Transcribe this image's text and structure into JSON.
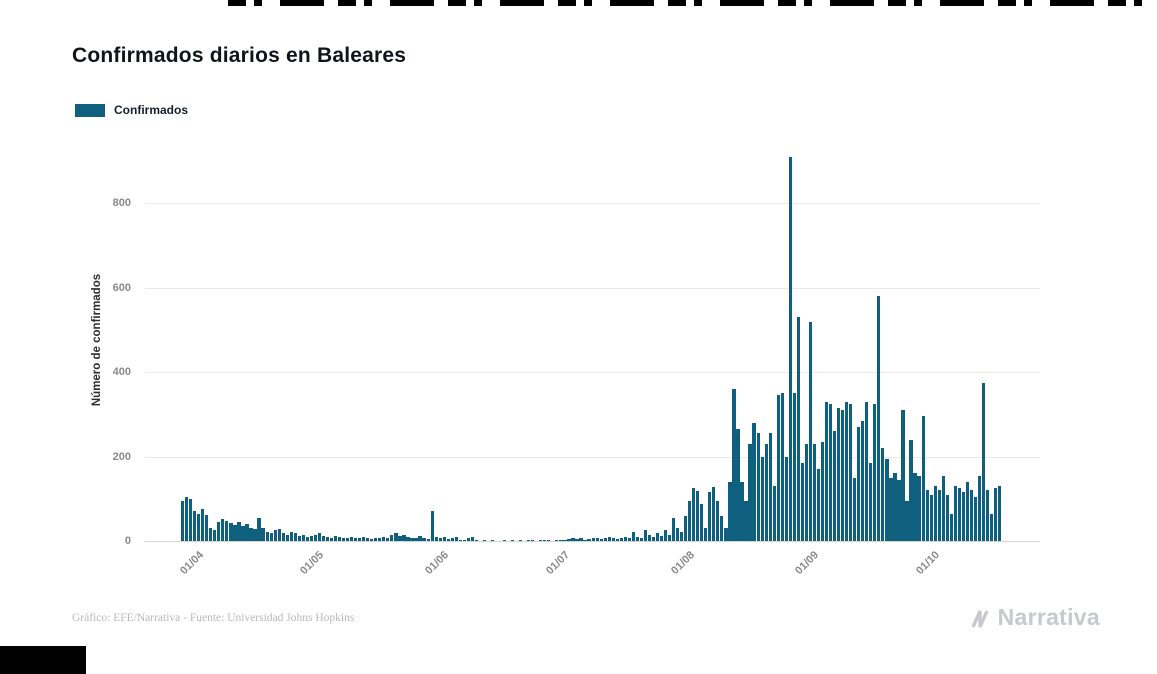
{
  "page": {
    "title": "Confirmados diarios en Baleares",
    "footer": "Gráfico: EFE/Narrativa - Fuente: Universidad Johns Hopkins",
    "brand": "Narrativa"
  },
  "legend": {
    "label": "Confirmados",
    "color": "#0f5f7f"
  },
  "chart_data": {
    "type": "bar",
    "title": "Confirmados diarios en Baleares",
    "xlabel": "",
    "ylabel": "Número de confirmados",
    "ylim": [
      0,
      950
    ],
    "y_ticks": [
      0,
      200,
      400,
      600,
      800
    ],
    "x_tick_labels": [
      "01/04",
      "01/05",
      "01/06",
      "01/07",
      "01/08",
      "01/09",
      "01/10"
    ],
    "x_tick_day_index": [
      4,
      34,
      65,
      95,
      126,
      157,
      187
    ],
    "bar_color": "#0f5f7f",
    "grid": true,
    "legend_position": "top-left",
    "x_range": {
      "start": "2020-03-28",
      "end": "2020-10-17",
      "frequency": "daily"
    },
    "series": [
      {
        "name": "Confirmados",
        "values": [
          95,
          105,
          100,
          70,
          65,
          75,
          62,
          30,
          25,
          45,
          52,
          48,
          42,
          38,
          45,
          35,
          40,
          32,
          28,
          55,
          30,
          22,
          18,
          25,
          28,
          20,
          15,
          22,
          18,
          12,
          15,
          10,
          12,
          15,
          18,
          12,
          10,
          8,
          12,
          10,
          8,
          6,
          10,
          8,
          6,
          10,
          8,
          5,
          6,
          8,
          10,
          6,
          15,
          18,
          12,
          15,
          10,
          8,
          6,
          12,
          8,
          5,
          70,
          10,
          8,
          10,
          5,
          8,
          10,
          2,
          3,
          8,
          10,
          2,
          0,
          3,
          0,
          2,
          0,
          0,
          2,
          0,
          3,
          0,
          2,
          0,
          3,
          2,
          0,
          3,
          2,
          3,
          0,
          2,
          3,
          3,
          5,
          8,
          4,
          6,
          3,
          5,
          8,
          6,
          4,
          8,
          10,
          6,
          5,
          8,
          10,
          8,
          22,
          10,
          8,
          25,
          15,
          10,
          20,
          12,
          25,
          15,
          55,
          30,
          22,
          60,
          95,
          125,
          118,
          88,
          30,
          115,
          128,
          95,
          60,
          30,
          140,
          360,
          265,
          140,
          95,
          230,
          280,
          255,
          200,
          230,
          255,
          130,
          345,
          350,
          200,
          910,
          350,
          530,
          185,
          230,
          520,
          230,
          170,
          235,
          330,
          325,
          260,
          315,
          310,
          330,
          325,
          150,
          270,
          285,
          330,
          185,
          325,
          580,
          220,
          195,
          150,
          160,
          145,
          310,
          95,
          240,
          160,
          155,
          295,
          120,
          110,
          130,
          120,
          155,
          110,
          65,
          130,
          125,
          115,
          140,
          120,
          105,
          155,
          375,
          120,
          65,
          125,
          130
        ]
      }
    ]
  }
}
